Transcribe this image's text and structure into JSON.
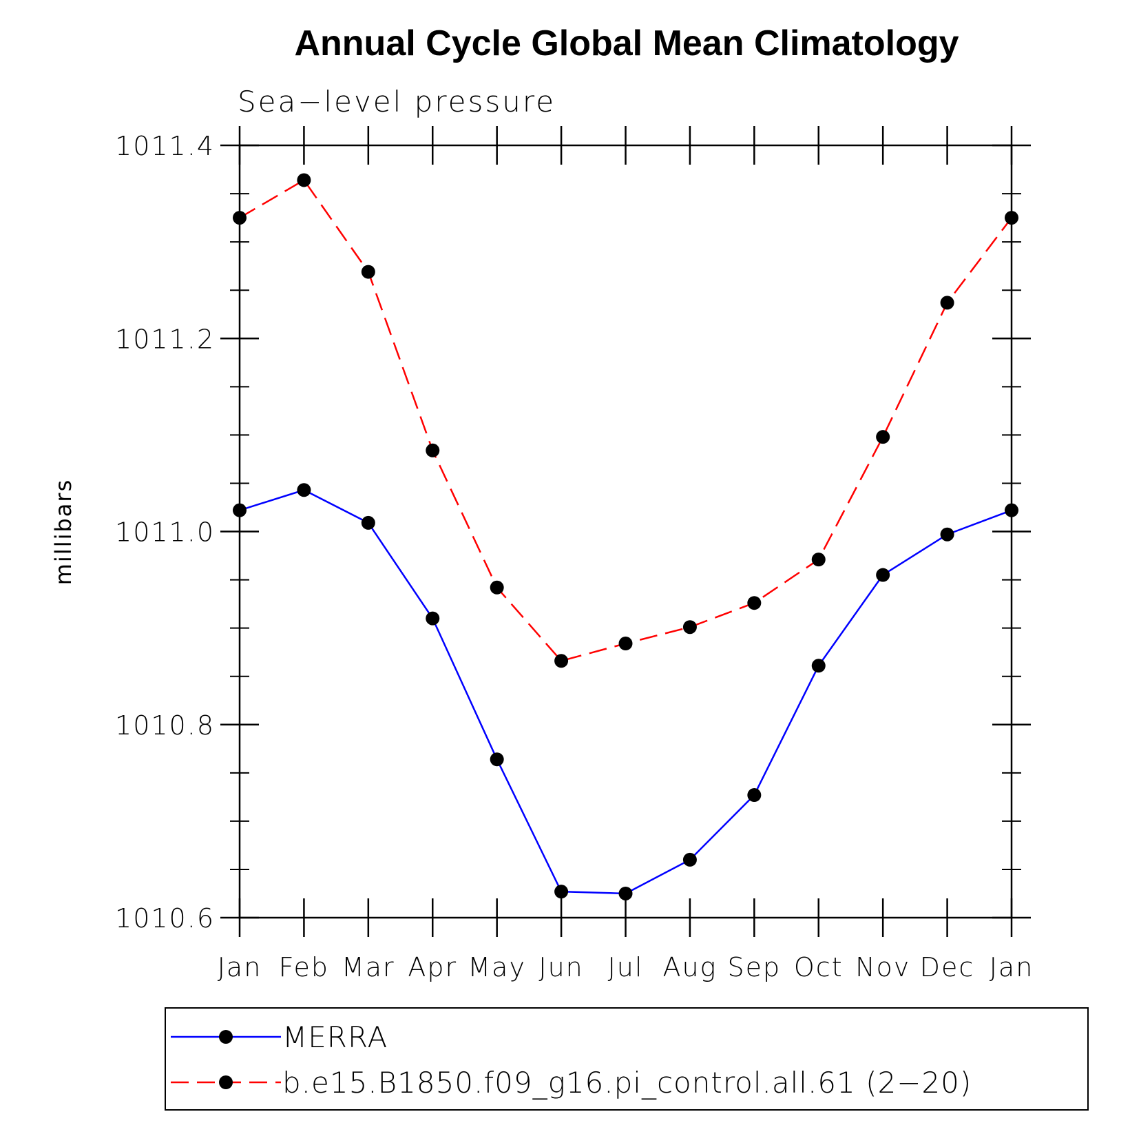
{
  "chart_data": {
    "type": "line",
    "title": "Annual Cycle Global Mean Climatology",
    "subtitle": "Sea−level pressure",
    "xlabel": "",
    "ylabel": "millibars",
    "categories": [
      "Jan",
      "Feb",
      "Mar",
      "Apr",
      "May",
      "Jun",
      "Jul",
      "Aug",
      "Sep",
      "Oct",
      "Nov",
      "Dec",
      "Jan"
    ],
    "ylim": [
      1010.6,
      1011.4
    ],
    "yticks": [
      1010.6,
      1010.8,
      1011.0,
      1011.2,
      1011.4
    ],
    "ytick_labels": [
      "1010.6",
      "1010.8",
      "1011.0",
      "1011.2",
      "1011.4"
    ],
    "grid": false,
    "legend_position": "bottom",
    "series": [
      {
        "name": "MERRA",
        "color": "#0000ff",
        "dash": "solid",
        "marker": "circle",
        "values": [
          1011.022,
          1011.043,
          1011.009,
          1010.91,
          1010.764,
          1010.627,
          1010.625,
          1010.66,
          1010.727,
          1010.861,
          1010.955,
          1010.997,
          1011.022
        ]
      },
      {
        "name": "b.e15.B1850.f09_g16.pi_control.all.61 (2−20)",
        "color": "#ff0000",
        "dash": "dashed",
        "marker": "circle",
        "values": [
          1011.325,
          1011.364,
          1011.269,
          1011.084,
          1010.942,
          1010.866,
          1010.884,
          1010.901,
          1010.926,
          1010.971,
          1011.098,
          1011.237,
          1011.325
        ]
      }
    ]
  }
}
